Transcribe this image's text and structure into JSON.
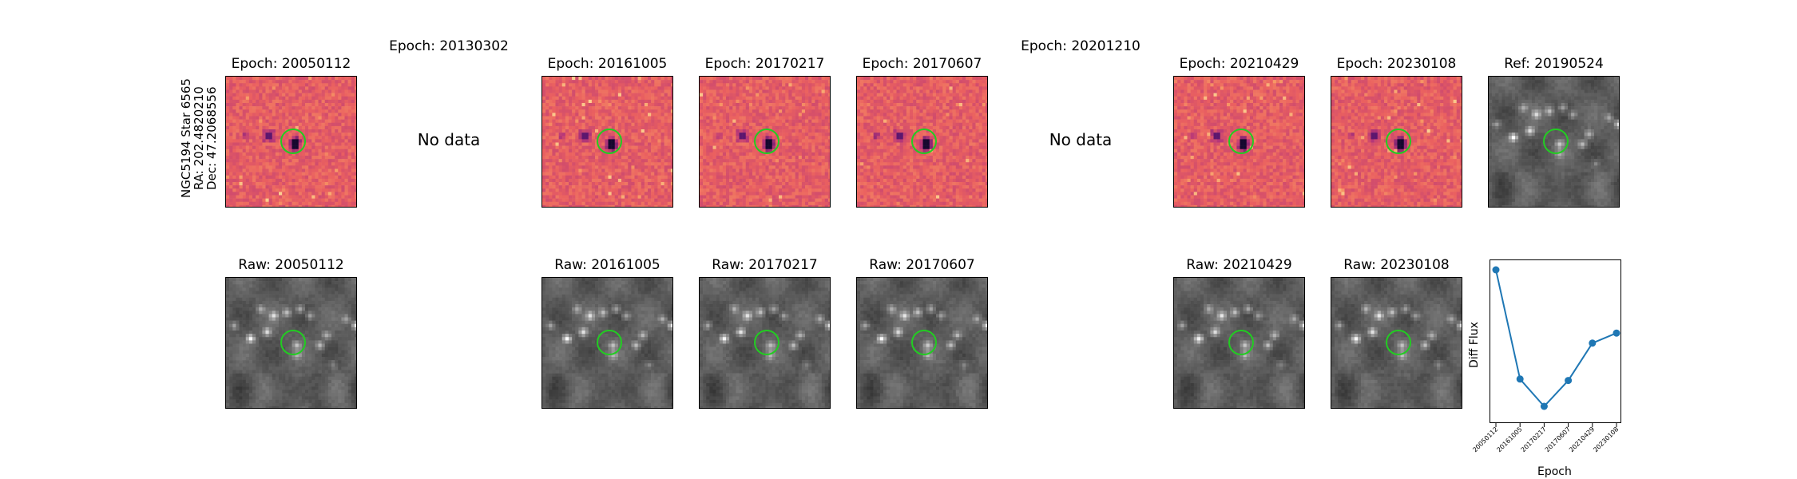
{
  "side_label": [
    "NGC5194 Star 6565",
    "RA: 202.4820210",
    "Dec: 47.2068556"
  ],
  "diff_row": [
    {
      "title": "Epoch: 20050112",
      "has_data": true
    },
    {
      "title": "Epoch: 20130302",
      "has_data": false,
      "message": "No data"
    },
    {
      "title": "Epoch: 20161005",
      "has_data": true
    },
    {
      "title": "Epoch: 20170217",
      "has_data": true
    },
    {
      "title": "Epoch: 20170607",
      "has_data": true
    },
    {
      "title": "Epoch: 20201210",
      "has_data": false,
      "message": "No data"
    },
    {
      "title": "Epoch: 20210429",
      "has_data": true
    },
    {
      "title": "Epoch: 20230108",
      "has_data": true
    },
    {
      "title": "Ref: 20190524",
      "has_data": true
    }
  ],
  "raw_row": [
    {
      "title": "Raw: 20050112"
    },
    {
      "title": "Raw: 20161005"
    },
    {
      "title": "Raw: 20170217"
    },
    {
      "title": "Raw: 20170607"
    },
    {
      "title": "Raw: 20210429"
    },
    {
      "title": "Raw: 20230108"
    }
  ],
  "colors": {
    "diff_colormap": "magma",
    "raw_colormap": "gray",
    "circle": "#22cc22",
    "line": "#1f77b4"
  },
  "chart_data": {
    "type": "line",
    "xlabel": "Epoch",
    "ylabel": "Diff Flux",
    "categories": [
      "20050112",
      "20161005",
      "20170217",
      "20170607",
      "20210429",
      "20230108"
    ],
    "values": [
      1.0,
      0.24,
      0.05,
      0.23,
      0.49,
      0.56
    ],
    "ylim": [
      0.0,
      1.1
    ],
    "grid": false,
    "markers": true
  }
}
